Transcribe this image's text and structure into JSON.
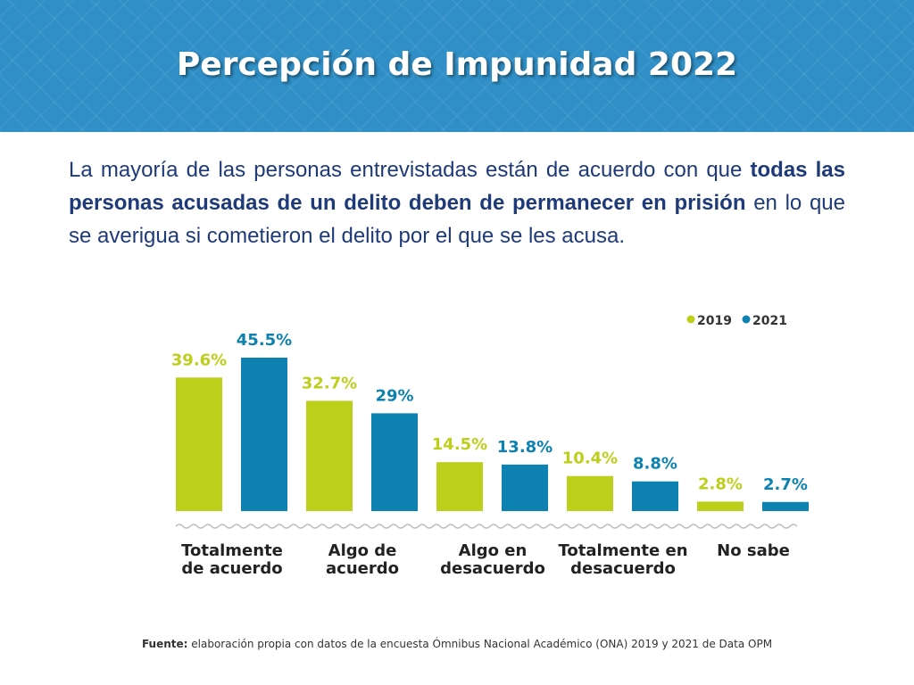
{
  "header": {
    "title": "Percepción de Impunidad 2022"
  },
  "paragraph": [
    "La mayoría de las personas entrevistadas están de acuerdo con que",
    "todas las personas acusadas de un delito deben de permanecer en prisión",
    "en lo que se averigua si cometieron el delito por el que se les acusa."
  ],
  "chart_data": {
    "type": "bar",
    "categories": [
      "Totalmente de acuerdo",
      "Algo de acuerdo",
      "Algo en desacuerdo",
      "Totalmente en desacuerdo",
      "No sabe"
    ],
    "series": [
      {
        "name": "2019",
        "color": "#bccf1a",
        "values": [
          39.6,
          32.7,
          14.5,
          10.4,
          2.8
        ],
        "value_labels": [
          "39.6%",
          "32.7%",
          "14.5%",
          "10.4%",
          "2.8%"
        ]
      },
      {
        "name": "2021",
        "color": "#0d82b0",
        "values": [
          45.5,
          29,
          13.8,
          8.8,
          2.7
        ],
        "value_labels": [
          "45.5%",
          "29%",
          "13.8%",
          "8.8%",
          "2.7%"
        ]
      }
    ],
    "legend": "top-right"
  },
  "footer": {
    "label": "Fuente:",
    "text": "elaboración propia con datos de la encuesta Ómnibus Nacional Académico (ONA) 2019 y 2021 de Data OPM"
  }
}
